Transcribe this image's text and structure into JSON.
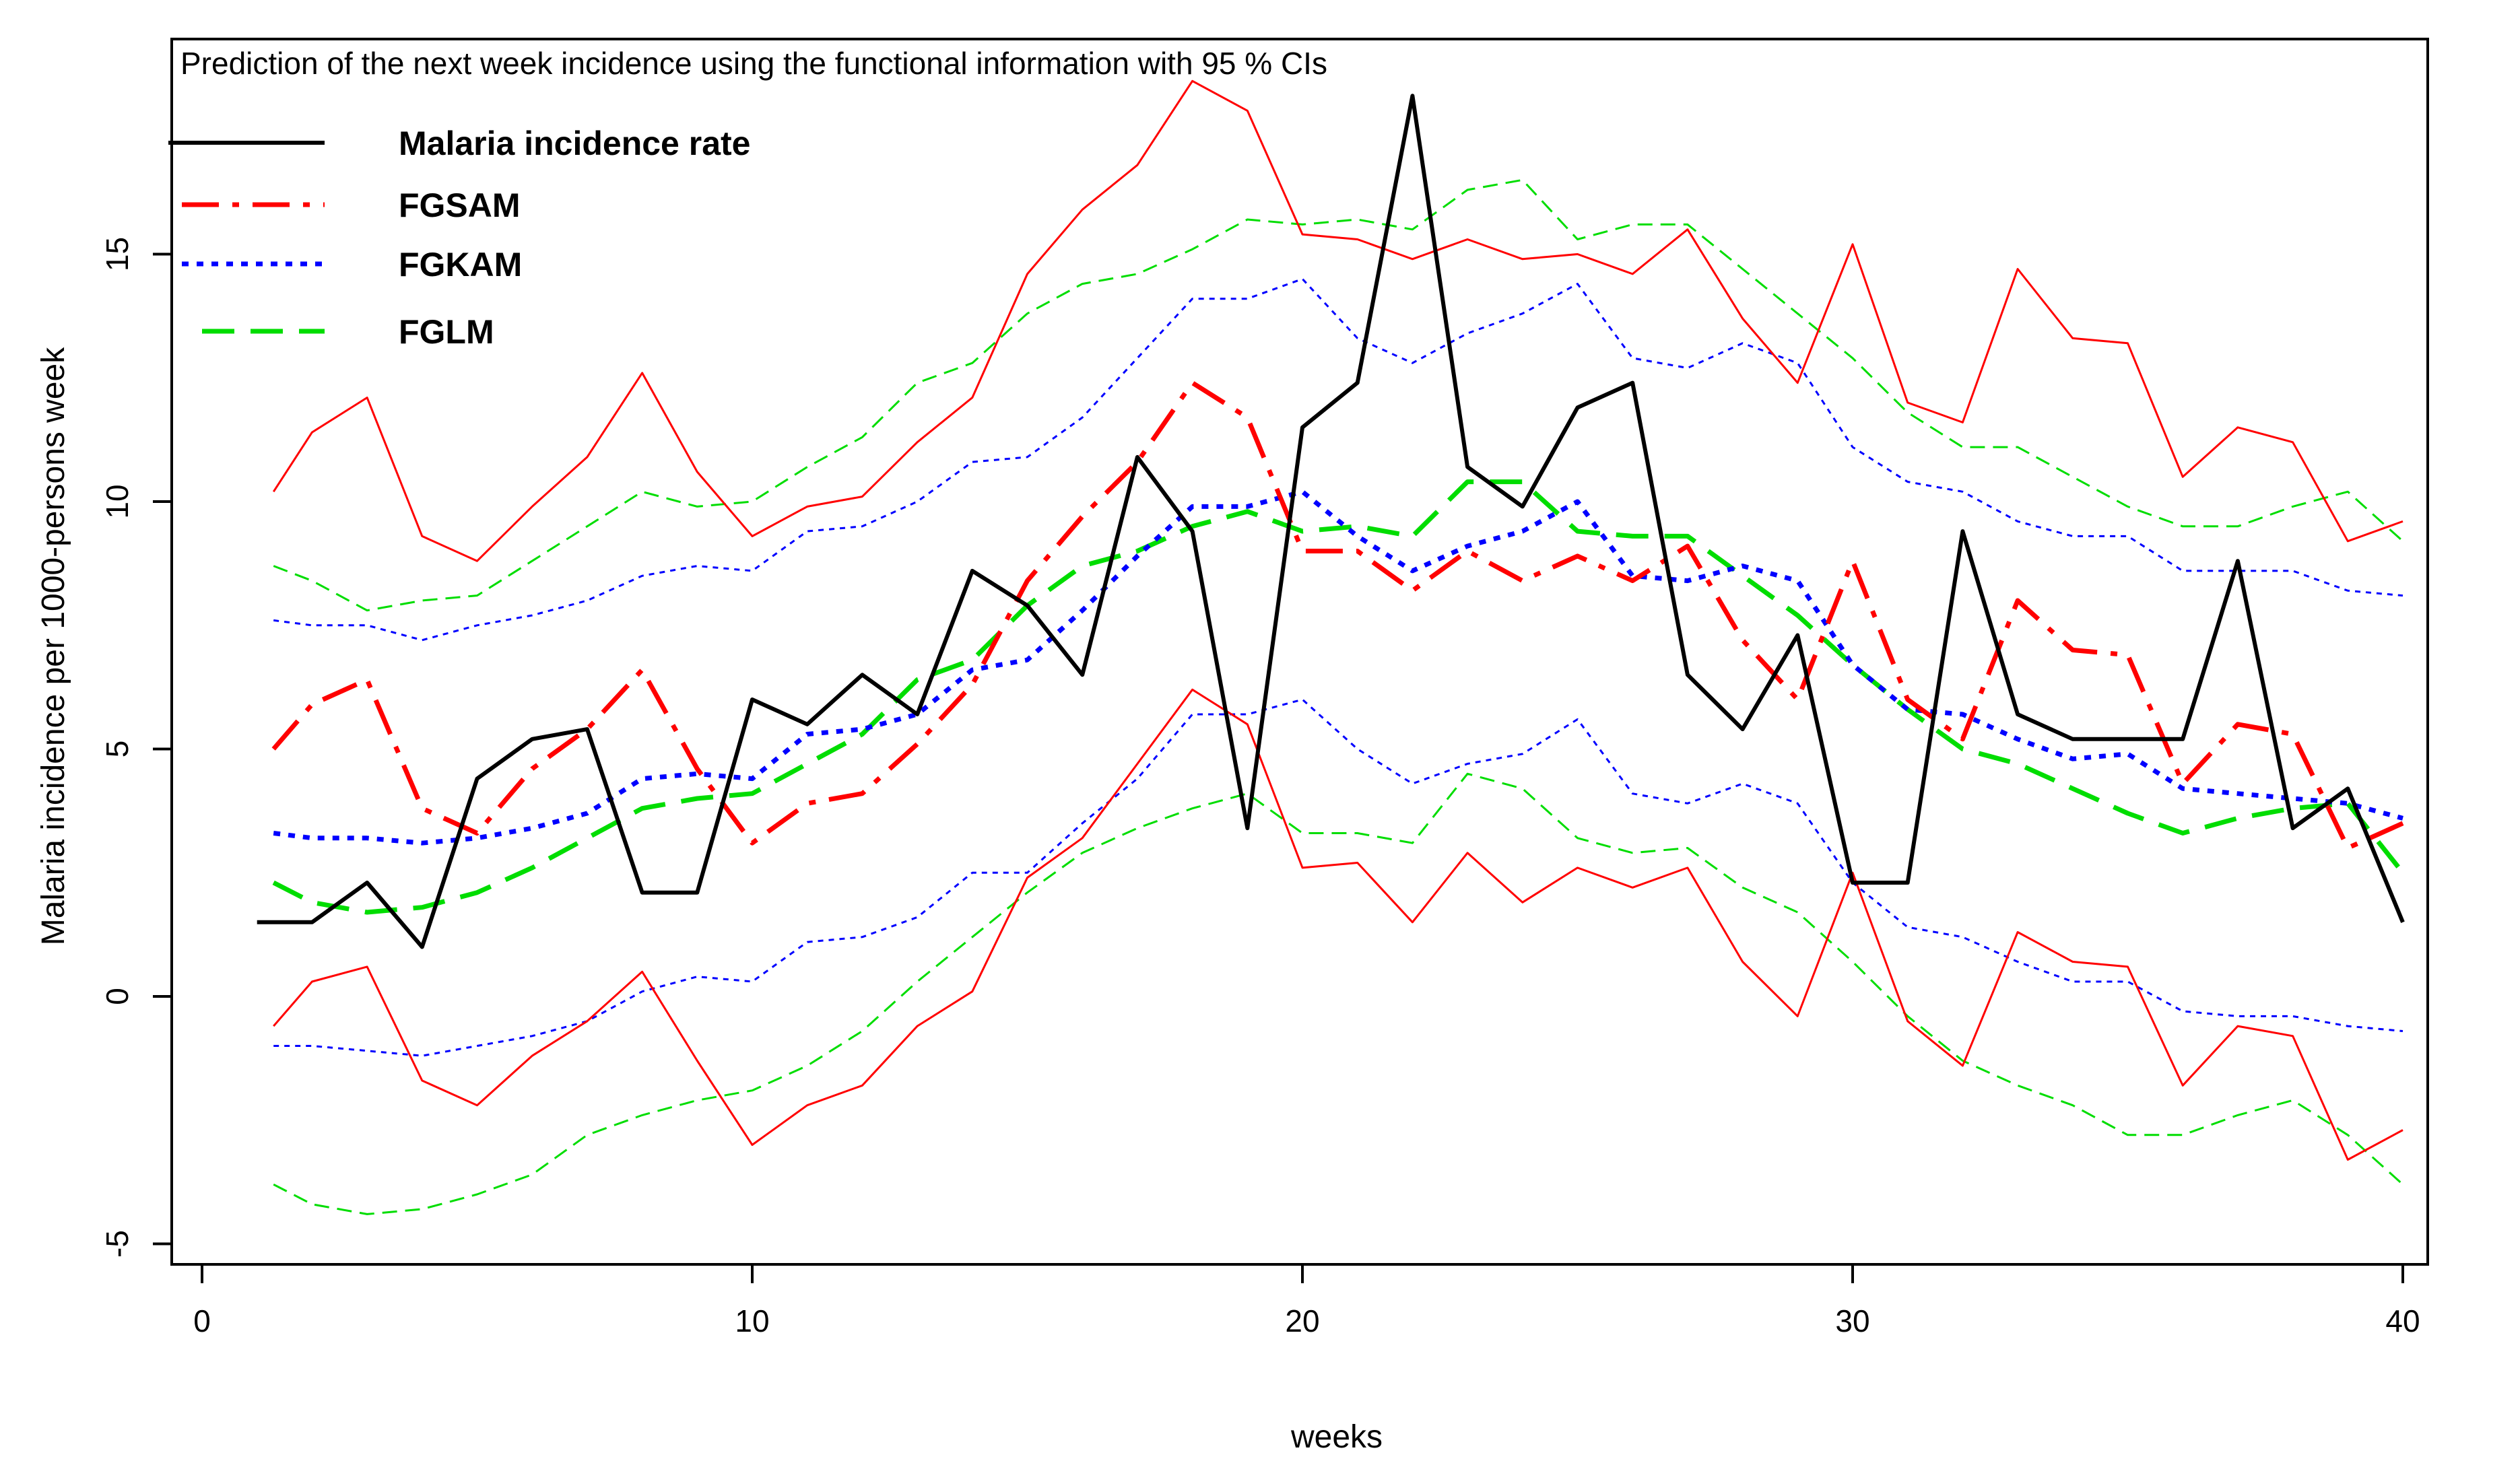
{
  "chart_data": {
    "type": "line",
    "title": "Prediction of the next week incidence using the functional information with 95 % CIs",
    "xlabel": "weeks",
    "ylabel": "Malaria incidence per 1000-persons week",
    "xlim": [
      0,
      40
    ],
    "ylim": [
      -5,
      17.5
    ],
    "xticks": [
      0,
      10,
      20,
      30,
      40
    ],
    "yticks": [
      -5,
      0,
      5,
      10,
      15
    ],
    "grid": false,
    "legend_position": "top-left",
    "colors": {
      "observed": "#000000",
      "fgsam": "#ff0000",
      "fgkam": "#0000ff",
      "fglm": "#00dd00"
    },
    "legend": [
      {
        "key": "observed",
        "label": "Malaria incidence rate",
        "dash": "solid"
      },
      {
        "key": "fgsam",
        "label": "FGSAM",
        "dash": "dashdot"
      },
      {
        "key": "fgkam",
        "label": "FGKAM",
        "dash": "dotted"
      },
      {
        "key": "fglm",
        "label": "FGLM",
        "dash": "dashed"
      }
    ],
    "x_observed": [
      1,
      2,
      3,
      4,
      5,
      6,
      7,
      8,
      9,
      10,
      11,
      12,
      13,
      14,
      15,
      16,
      17,
      18,
      19,
      20,
      21,
      22,
      23,
      24,
      25,
      26,
      27,
      28,
      29,
      30,
      31,
      32,
      33,
      34,
      35,
      36,
      37,
      38,
      39,
      40
    ],
    "x_pred": [
      1.3,
      2,
      3,
      4,
      5,
      6,
      7,
      8,
      9,
      10,
      11,
      12,
      13,
      14,
      15,
      16,
      17,
      18,
      19,
      20,
      21,
      22,
      23,
      24,
      25,
      26,
      27,
      28,
      29,
      30,
      31,
      32,
      33,
      34,
      35,
      36,
      37,
      38,
      39,
      40
    ],
    "series": [
      {
        "key": "observed",
        "role": "main",
        "values": [
          1.5,
          1.5,
          2.3,
          1.0,
          4.4,
          5.2,
          5.4,
          2.1,
          2.1,
          6.0,
          5.5,
          6.5,
          5.7,
          8.6,
          7.9,
          6.5,
          10.9,
          9.4,
          3.4,
          11.5,
          12.4,
          18.2,
          10.7,
          9.9,
          11.9,
          12.4,
          6.5,
          5.4,
          7.3,
          2.3,
          2.3,
          9.4,
          5.7,
          5.2,
          5.2,
          5.2,
          8.8,
          3.4,
          4.2,
          1.5
        ]
      },
      {
        "key": "fgsam",
        "role": "main",
        "values": [
          5.0,
          5.9,
          6.4,
          3.8,
          3.3,
          4.6,
          5.4,
          6.6,
          4.6,
          3.1,
          3.9,
          4.1,
          5.1,
          6.3,
          8.4,
          9.7,
          10.8,
          12.4,
          11.7,
          9.0,
          9.0,
          8.2,
          9.0,
          8.4,
          8.9,
          8.4,
          9.1,
          7.2,
          6.0,
          8.8,
          6.0,
          5.2,
          8.0,
          7.0,
          6.9,
          4.3,
          5.5,
          5.3,
          3.0,
          3.5
        ]
      },
      {
        "key": "fgsam",
        "role": "upper",
        "values": [
          10.2,
          11.4,
          12.1,
          9.3,
          8.8,
          9.9,
          10.9,
          12.6,
          10.6,
          9.3,
          9.9,
          10.1,
          11.2,
          12.1,
          14.6,
          15.9,
          16.8,
          18.5,
          17.9,
          15.4,
          15.3,
          14.9,
          15.3,
          14.9,
          15.0,
          14.6,
          15.5,
          13.7,
          12.4,
          15.2,
          12.0,
          11.6,
          14.7,
          13.3,
          13.2,
          10.5,
          11.5,
          11.2,
          9.2,
          9.6
        ]
      },
      {
        "key": "fgsam",
        "role": "lower",
        "values": [
          -0.6,
          0.3,
          0.6,
          -1.7,
          -2.2,
          -1.2,
          -0.5,
          0.5,
          -1.3,
          -3.0,
          -2.2,
          -1.8,
          -0.6,
          0.1,
          2.4,
          3.2,
          4.7,
          6.2,
          5.5,
          2.6,
          2.7,
          1.5,
          2.9,
          1.9,
          2.6,
          2.2,
          2.6,
          0.7,
          -0.4,
          2.5,
          -0.5,
          -1.4,
          1.3,
          0.7,
          0.6,
          -1.8,
          -0.6,
          -0.8,
          -3.3,
          -2.7
        ]
      },
      {
        "key": "fgkam",
        "role": "main",
        "values": [
          3.3,
          3.2,
          3.2,
          3.1,
          3.2,
          3.4,
          3.7,
          4.4,
          4.5,
          4.4,
          5.3,
          5.4,
          5.7,
          6.6,
          6.8,
          7.8,
          8.9,
          9.9,
          9.9,
          10.2,
          9.3,
          8.6,
          9.1,
          9.4,
          10.0,
          8.5,
          8.4,
          8.7,
          8.4,
          6.7,
          5.8,
          5.7,
          5.2,
          4.8,
          4.9,
          4.2,
          4.1,
          4.0,
          3.9,
          3.6
        ]
      },
      {
        "key": "fgkam",
        "role": "upper",
        "values": [
          7.6,
          7.5,
          7.5,
          7.2,
          7.5,
          7.7,
          8.0,
          8.5,
          8.7,
          8.6,
          9.4,
          9.5,
          10.0,
          10.8,
          10.9,
          11.7,
          12.9,
          14.1,
          14.1,
          14.5,
          13.3,
          12.8,
          13.4,
          13.8,
          14.4,
          12.9,
          12.7,
          13.2,
          12.8,
          11.1,
          10.4,
          10.2,
          9.6,
          9.3,
          9.3,
          8.6,
          8.6,
          8.6,
          8.2,
          8.1
        ]
      },
      {
        "key": "fgkam",
        "role": "lower",
        "values": [
          -1.0,
          -1.0,
          -1.1,
          -1.2,
          -1.0,
          -0.8,
          -0.5,
          0.1,
          0.4,
          0.3,
          1.1,
          1.2,
          1.6,
          2.5,
          2.5,
          3.5,
          4.4,
          5.7,
          5.7,
          6.0,
          5.0,
          4.3,
          4.7,
          4.9,
          5.6,
          4.1,
          3.9,
          4.3,
          3.9,
          2.3,
          1.4,
          1.2,
          0.7,
          0.3,
          0.3,
          -0.3,
          -0.4,
          -0.4,
          -0.6,
          -0.7
        ]
      },
      {
        "key": "fglm",
        "role": "main",
        "values": [
          2.3,
          1.9,
          1.7,
          1.8,
          2.1,
          2.6,
          3.2,
          3.8,
          4.0,
          4.1,
          4.7,
          5.3,
          6.4,
          6.8,
          7.9,
          8.7,
          9.0,
          9.5,
          9.8,
          9.4,
          9.5,
          9.3,
          10.4,
          10.4,
          9.4,
          9.3,
          9.3,
          8.5,
          7.7,
          6.7,
          5.8,
          5.0,
          4.7,
          4.2,
          3.7,
          3.3,
          3.6,
          3.8,
          3.9,
          2.5
        ]
      },
      {
        "key": "fglm",
        "role": "upper",
        "values": [
          8.7,
          8.4,
          7.8,
          8.0,
          8.1,
          8.8,
          9.5,
          10.2,
          9.9,
          10.0,
          10.7,
          11.3,
          12.4,
          12.8,
          13.8,
          14.4,
          14.6,
          15.1,
          15.7,
          15.6,
          15.7,
          15.5,
          16.3,
          16.5,
          15.3,
          15.6,
          15.6,
          14.7,
          13.8,
          12.9,
          11.8,
          11.1,
          11.1,
          10.5,
          9.9,
          9.5,
          9.5,
          9.9,
          10.2,
          9.2
        ]
      },
      {
        "key": "fglm",
        "role": "lower",
        "values": [
          -3.8,
          -4.2,
          -4.4,
          -4.3,
          -4.0,
          -3.6,
          -2.8,
          -2.4,
          -2.1,
          -1.9,
          -1.4,
          -0.7,
          0.3,
          1.2,
          2.1,
          2.9,
          3.4,
          3.8,
          4.1,
          3.3,
          3.3,
          3.1,
          4.5,
          4.2,
          3.2,
          2.9,
          3.0,
          2.2,
          1.7,
          0.7,
          -0.4,
          -1.3,
          -1.8,
          -2.2,
          -2.8,
          -2.8,
          -2.4,
          -2.1,
          -2.8,
          -3.8
        ]
      }
    ]
  }
}
